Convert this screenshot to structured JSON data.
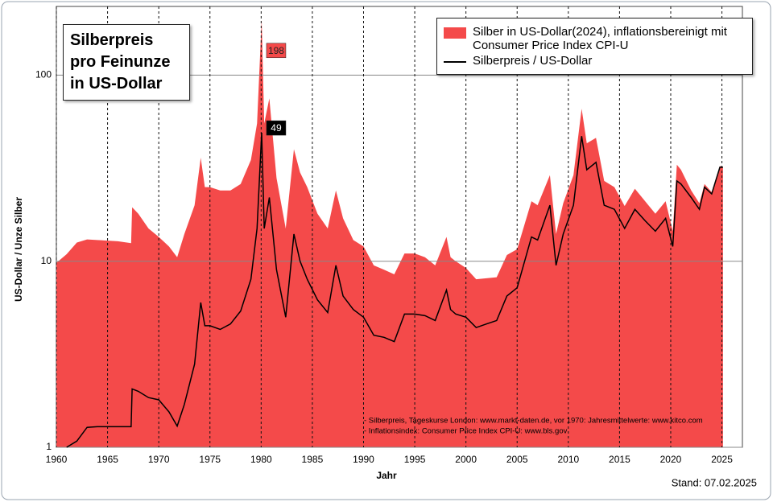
{
  "chart_data": {
    "type": "area-line",
    "title": "Silberpreis pro Feinunze in US-Dollar",
    "xlabel": "Jahr",
    "ylabel": "US-Dollar / Unze Silber",
    "notes": [
      "- Silberpreis, Tageskurse London: www.markt-daten.de, vor 1970: Jahresmittelwerte: www.kitco.com",
      "- Inflationsindex: Consumer Price Index CPI-U: www.bls.gov"
    ],
    "footer": "Stand:  07.02.2025",
    "log_y": true,
    "grid": true,
    "legend": "top-right",
    "xlim": [
      1960,
      2027
    ],
    "xticks": [
      1960,
      1965,
      1970,
      1975,
      1980,
      1985,
      1990,
      1995,
      2000,
      2005,
      2010,
      2015,
      2020,
      2025
    ],
    "ylim": [
      1,
      234
    ],
    "yticks": [
      1,
      10,
      100
    ],
    "x": [
      1960,
      1961,
      1962,
      1963,
      1964,
      1966,
      1967.3,
      1967.4,
      1968,
      1969,
      1970,
      1971,
      1971.8,
      1972.5,
      1973.5,
      1974.1,
      1974.5,
      1975,
      1976,
      1977,
      1978,
      1979,
      1979.6,
      1980.05,
      1980.3,
      1980.8,
      1981.5,
      1982.4,
      1983.2,
      1983.8,
      1984.5,
      1985.5,
      1986.5,
      1987.3,
      1988,
      1989,
      1990,
      1991,
      1992,
      1993,
      1994,
      1995,
      1996,
      1997,
      1998.1,
      1998.5,
      1999,
      2000,
      2001,
      2002,
      2003,
      2004,
      2005,
      2006.4,
      2007,
      2008.2,
      2008.8,
      2009.5,
      2010.5,
      2011.3,
      2011.8,
      2012.7,
      2013.5,
      2014.5,
      2015.5,
      2016.5,
      2017.5,
      2018.5,
      2019.5,
      2020.2,
      2020.6,
      2021,
      2022,
      2022.8,
      2023.3,
      2024,
      2024.8,
      2025.1
    ],
    "series": [
      {
        "name": "Silber in US-Dollar(2024), inflationsbereinigt mit Consumer Price Index CPI-U",
        "color": "#f44a4a",
        "kind": "area",
        "values": [
          9.8,
          10.9,
          12.6,
          13.1,
          13.0,
          12.8,
          12.5,
          19.5,
          18,
          15,
          13.5,
          12,
          10.5,
          14,
          20,
          36,
          25,
          25,
          24,
          24,
          26,
          35,
          55,
          198,
          55,
          75,
          28,
          15,
          40,
          30,
          25,
          18,
          15,
          24,
          17,
          13,
          12,
          9.5,
          9,
          8.5,
          11,
          11,
          10.5,
          9.5,
          13.5,
          10.5,
          10,
          9.2,
          8,
          8.1,
          8.2,
          10.8,
          11.6,
          21,
          20,
          29,
          14,
          20.5,
          29,
          66,
          43,
          46,
          27,
          25,
          19.8,
          24.5,
          21,
          18,
          21,
          14.5,
          33,
          31,
          24,
          20.5,
          26,
          23.5,
          32.5,
          32
        ]
      },
      {
        "name": "Silberpreis / US-Dollar",
        "color": "#000000",
        "kind": "line",
        "values": [
          null,
          1.0,
          1.08,
          1.28,
          1.29,
          1.29,
          1.29,
          2.06,
          2.0,
          1.85,
          1.8,
          1.55,
          1.3,
          1.7,
          2.8,
          6.0,
          4.5,
          4.5,
          4.3,
          4.6,
          5.4,
          8,
          15,
          49,
          15,
          22,
          9,
          5,
          14,
          10,
          8,
          6.2,
          5.3,
          9.5,
          6.5,
          5.5,
          5,
          4,
          3.9,
          3.7,
          5.2,
          5.2,
          5.1,
          4.8,
          7.0,
          5.5,
          5.2,
          5.0,
          4.4,
          4.6,
          4.8,
          6.5,
          7.2,
          13.5,
          13,
          20,
          9.5,
          14,
          20,
          47,
          31,
          34,
          20,
          19,
          15,
          19,
          16.5,
          14.5,
          17,
          12,
          27,
          26,
          22,
          19,
          25,
          23,
          32,
          32
        ]
      }
    ]
  }
}
